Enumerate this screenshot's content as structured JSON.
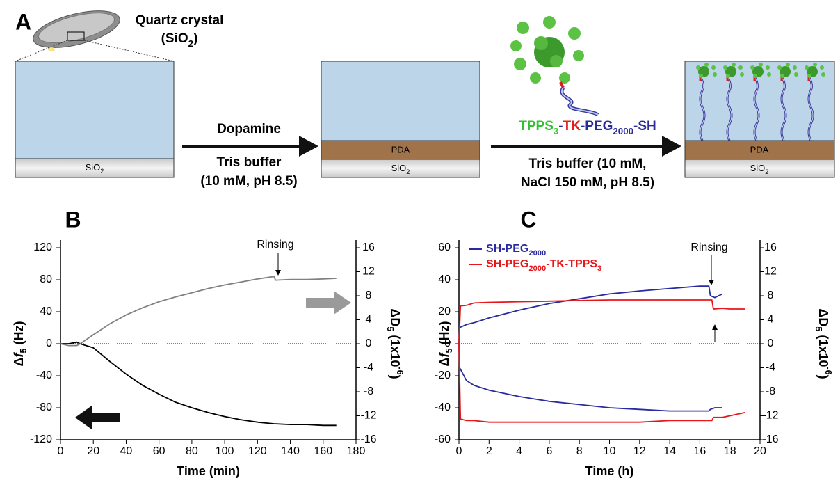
{
  "panel_a": {
    "label": "A",
    "crystal_title": "Quartz crystal",
    "crystal_formula": [
      {
        "text": "(SiO"
      },
      {
        "text": "2",
        "sub": true
      },
      {
        "text": ")"
      }
    ],
    "substrate": [
      {
        "text": "SiO"
      },
      {
        "text": "2",
        "sub": true
      }
    ],
    "coating": "PDA",
    "step1": {
      "reagent": "Dopamine",
      "buffer": "Tris buffer",
      "conditions": "(10 mM, pH 8.5)"
    },
    "step2": {
      "reagent": [
        {
          "text": "TPPS",
          "color": "#2fc22f"
        },
        {
          "text": "3",
          "sub": true,
          "color": "#2fc22f"
        },
        {
          "text": "-",
          "color": "#2a2a9a"
        },
        {
          "text": "TK",
          "color": "#e02020"
        },
        {
          "text": "-PEG",
          "color": "#2a2a9a"
        },
        {
          "text": "2000",
          "sub": true,
          "color": "#2a2a9a"
        },
        {
          "text": "-SH",
          "color": "#2a2a9a"
        }
      ],
      "buffer": "Tris buffer (10 mM,",
      "conditions": "NaCl 150 mM, pH 8.5)"
    }
  },
  "chart_data": [
    {
      "type": "line",
      "panel": "B",
      "xlabel": "Time (min)",
      "ylabel": [
        {
          "text": "Δ"
        },
        {
          "text": "f",
          "italic": true
        },
        {
          "text": "5",
          "sub": true
        },
        {
          "text": " (Hz)"
        }
      ],
      "y2label": [
        {
          "text": "ΔD"
        },
        {
          "text": "5",
          "sub": true
        },
        {
          "text": " (1x10"
        },
        {
          "text": "-6",
          "sup": true
        },
        {
          "text": ")"
        }
      ],
      "annotation": "Rinsing",
      "xlim": [
        0,
        180
      ],
      "xticks": [
        0,
        20,
        40,
        60,
        80,
        100,
        120,
        140,
        160,
        180
      ],
      "ylim": [
        -120,
        120
      ],
      "yticks": [
        -120,
        -80,
        -40,
        0,
        40,
        80,
        120
      ],
      "y2lim": [
        -16,
        16
      ],
      "y2ticks": [
        -16,
        -12,
        -8,
        -4,
        0,
        4,
        8,
        12,
        16
      ],
      "series": [
        {
          "color": "#000000",
          "x": [
            0,
            5,
            10,
            12,
            20,
            30,
            40,
            50,
            60,
            70,
            80,
            90,
            100,
            110,
            120,
            130,
            140,
            150,
            160,
            168
          ],
          "values": [
            0,
            0,
            2,
            0,
            -5,
            -22,
            -38,
            -52,
            -63,
            -73,
            -80,
            -86,
            -91,
            -95,
            -98,
            -100,
            -101,
            -101,
            -102,
            -102
          ]
        },
        {
          "color": "#808080",
          "axis": "y2",
          "x": [
            0,
            5,
            10,
            12,
            20,
            30,
            40,
            50,
            60,
            70,
            80,
            90,
            100,
            110,
            120,
            130,
            131,
            140,
            150,
            160,
            168
          ],
          "values": [
            0,
            -0.3,
            -0.3,
            0,
            1.5,
            3.3,
            4.8,
            6.0,
            7.0,
            7.8,
            8.5,
            9.2,
            9.8,
            10.3,
            10.8,
            11.2,
            10.6,
            10.7,
            10.7,
            10.8,
            10.9
          ]
        }
      ]
    },
    {
      "type": "line",
      "panel": "C",
      "xlabel": "Time (h)",
      "ylabel": [
        {
          "text": "Δ"
        },
        {
          "text": "f",
          "italic": true
        },
        {
          "text": "5",
          "sub": true
        },
        {
          "text": " (Hz)"
        }
      ],
      "y2label": [
        {
          "text": "ΔD"
        },
        {
          "text": "5",
          "sub": true
        },
        {
          "text": " (1x10"
        },
        {
          "text": "-6",
          "sup": true
        },
        {
          "text": ")"
        }
      ],
      "annotation": "Rinsing",
      "legend": "upper left",
      "xlim": [
        0,
        20
      ],
      "xticks": [
        0,
        2,
        4,
        6,
        8,
        10,
        12,
        14,
        16,
        18,
        20
      ],
      "ylim": [
        -60,
        60
      ],
      "yticks": [
        -60,
        -40,
        -20,
        0,
        20,
        40,
        60
      ],
      "y2lim": [
        -16,
        16
      ],
      "y2ticks": [
        -16,
        -12,
        -8,
        -4,
        0,
        4,
        8,
        12,
        16
      ],
      "series": [
        {
          "name": [
            {
              "text": "SH-PEG"
            },
            {
              "text": "2000",
              "sub": true
            }
          ],
          "color": "#2a2aa0",
          "x": [
            0,
            0.05,
            0.5,
            1,
            2,
            4,
            6,
            8,
            10,
            12,
            14,
            16,
            16.6,
            16.7,
            17,
            17.5
          ],
          "values": [
            0,
            -15,
            -23,
            -26,
            -29,
            -33,
            -36,
            -38,
            -40,
            -41,
            -42,
            -42,
            -42,
            -41,
            -40,
            -40
          ],
          "dissipation": [
            0,
            2.7,
            3.2,
            3.5,
            4.3,
            5.6,
            6.7,
            7.5,
            8.3,
            8.8,
            9.2,
            9.6,
            9.6,
            8.0,
            7.7,
            8.3
          ]
        },
        {
          "name": [
            {
              "text": "SH-PEG"
            },
            {
              "text": "2000",
              "sub": true
            },
            {
              "text": "-TK-TPPS"
            },
            {
              "text": "3",
              "sub": true
            }
          ],
          "color": "#e8161b",
          "x": [
            0,
            0.1,
            0.5,
            1,
            2,
            4,
            6,
            8,
            10,
            12,
            14,
            16,
            16.8,
            16.9,
            17.5,
            18,
            19
          ],
          "values": [
            0,
            -47,
            -48,
            -48,
            -49,
            -49,
            -49,
            -49,
            -49,
            -49,
            -48,
            -48,
            -48,
            -46,
            -46,
            -45,
            -43
          ],
          "dissipation": [
            0,
            6.3,
            6.4,
            6.8,
            6.9,
            7.0,
            7.1,
            7.2,
            7.3,
            7.3,
            7.3,
            7.3,
            7.3,
            5.8,
            5.9,
            5.8,
            5.8
          ]
        }
      ]
    }
  ]
}
